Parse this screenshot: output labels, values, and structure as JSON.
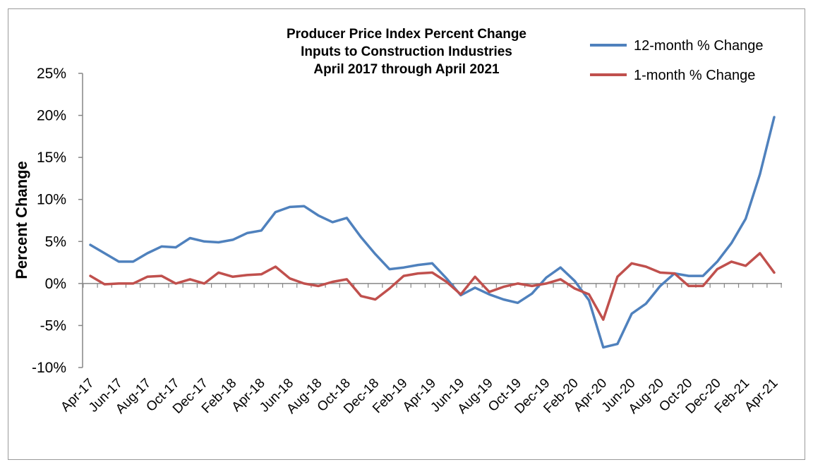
{
  "chart_data": {
    "type": "line",
    "title": [
      "Producer Price Index Percent Change",
      "Inputs to Construction Industries",
      "April 2017 through April 2021"
    ],
    "xlabel": "",
    "ylabel": "Percent Change",
    "ylim": [
      -10,
      25
    ],
    "yticks": [
      25,
      20,
      15,
      10,
      5,
      0,
      -5,
      -10
    ],
    "ytick_labels": [
      "25%",
      "20%",
      "15%",
      "10%",
      "5%",
      "0%",
      "-5%",
      "-10%"
    ],
    "x": [
      "Apr-17",
      "May-17",
      "Jun-17",
      "Jul-17",
      "Aug-17",
      "Sep-17",
      "Oct-17",
      "Nov-17",
      "Dec-17",
      "Jan-18",
      "Feb-18",
      "Mar-18",
      "Apr-18",
      "May-18",
      "Jun-18",
      "Jul-18",
      "Aug-18",
      "Sep-18",
      "Oct-18",
      "Nov-18",
      "Dec-18",
      "Jan-19",
      "Feb-19",
      "Mar-19",
      "Apr-19",
      "May-19",
      "Jun-19",
      "Jul-19",
      "Aug-19",
      "Sep-19",
      "Oct-19",
      "Nov-19",
      "Dec-19",
      "Jan-20",
      "Feb-20",
      "Mar-20",
      "Apr-20",
      "May-20",
      "Jun-20",
      "Jul-20",
      "Aug-20",
      "Sep-20",
      "Oct-20",
      "Nov-20",
      "Dec-20",
      "Jan-21",
      "Feb-21",
      "Mar-21",
      "Apr-21"
    ],
    "xtick_labels": [
      "Apr-17",
      "Jun-17",
      "Aug-17",
      "Oct-17",
      "Dec-17",
      "Feb-18",
      "Apr-18",
      "Jun-18",
      "Aug-18",
      "Oct-18",
      "Dec-18",
      "Feb-19",
      "Apr-19",
      "Jun-19",
      "Aug-19",
      "Oct-19",
      "Dec-19",
      "Feb-20",
      "Apr-20",
      "Jun-20",
      "Aug-20",
      "Oct-20",
      "Dec-20",
      "Feb-21",
      "Apr-21"
    ],
    "series": [
      {
        "name": "12-month % Change",
        "color": "#4f81bd",
        "values": [
          4.6,
          3.6,
          2.6,
          2.6,
          3.6,
          4.4,
          4.3,
          5.4,
          5.0,
          4.9,
          5.2,
          6.0,
          6.3,
          8.5,
          9.1,
          9.2,
          8.1,
          7.3,
          7.8,
          5.5,
          3.5,
          1.7,
          1.9,
          2.2,
          2.4,
          0.6,
          -1.4,
          -0.5,
          -1.3,
          -1.9,
          -2.3,
          -1.2,
          0.7,
          1.9,
          0.3,
          -2.0,
          -7.6,
          -7.2,
          -3.6,
          -2.4,
          -0.3,
          1.2,
          0.9,
          0.9,
          2.6,
          4.8,
          7.7,
          13.0,
          19.8
        ]
      },
      {
        "name": "1-month % Change",
        "color": "#c0504d",
        "values": [
          0.9,
          -0.1,
          0.0,
          0.0,
          0.8,
          0.9,
          0.0,
          0.5,
          0.0,
          1.3,
          0.8,
          1.0,
          1.1,
          2.0,
          0.6,
          0.0,
          -0.3,
          0.2,
          0.5,
          -1.5,
          -1.9,
          -0.6,
          0.9,
          1.2,
          1.3,
          0.2,
          -1.3,
          0.8,
          -1.0,
          -0.4,
          0.0,
          -0.3,
          0.0,
          0.5,
          -0.6,
          -1.3,
          -4.3,
          0.8,
          2.4,
          2.0,
          1.3,
          1.2,
          -0.3,
          -0.3,
          1.7,
          2.6,
          2.1,
          3.6,
          1.3
        ]
      }
    ],
    "legend": "top-right",
    "grid": false
  }
}
